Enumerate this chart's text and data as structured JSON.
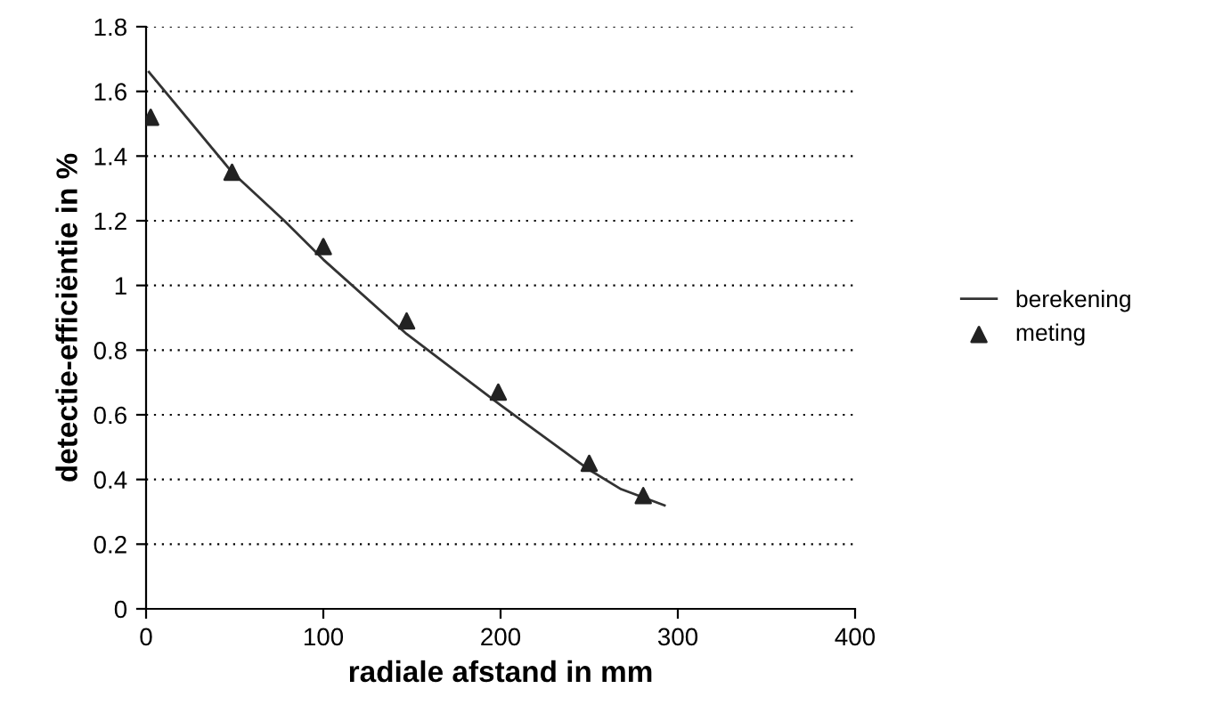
{
  "chart_data": {
    "type": "scatter",
    "xlabel": "radiale afstand in mm",
    "ylabel": "detectie-efficiëntie in %",
    "xlim": [
      0,
      400
    ],
    "xticks": [
      0,
      100,
      200,
      300,
      400
    ],
    "ylim": [
      0,
      1.8
    ],
    "yticks": [
      0,
      0.2,
      0.4,
      0.6,
      0.8,
      1,
      1.2,
      1.4,
      1.6,
      1.8
    ],
    "grid": "y",
    "legend": "right",
    "series": [
      {
        "name": "berekening",
        "type": "line",
        "color": "#333333",
        "marker": "none",
        "line_style": "solid",
        "x": [
          1.6,
          48.5,
          78,
          100,
          147,
          200,
          250,
          268,
          292.5
        ],
        "values": [
          1.66,
          1.35,
          1.2,
          1.08,
          0.85,
          0.63,
          0.43,
          0.37,
          0.32
        ]
      },
      {
        "name": "meting",
        "color": "#222222",
        "marker": "triangle",
        "x": [
          2.6,
          48.5,
          100,
          147,
          198.7,
          250,
          280.5
        ],
        "values": [
          1.52,
          1.35,
          1.12,
          0.89,
          0.67,
          0.45,
          0.35
        ]
      }
    ]
  }
}
